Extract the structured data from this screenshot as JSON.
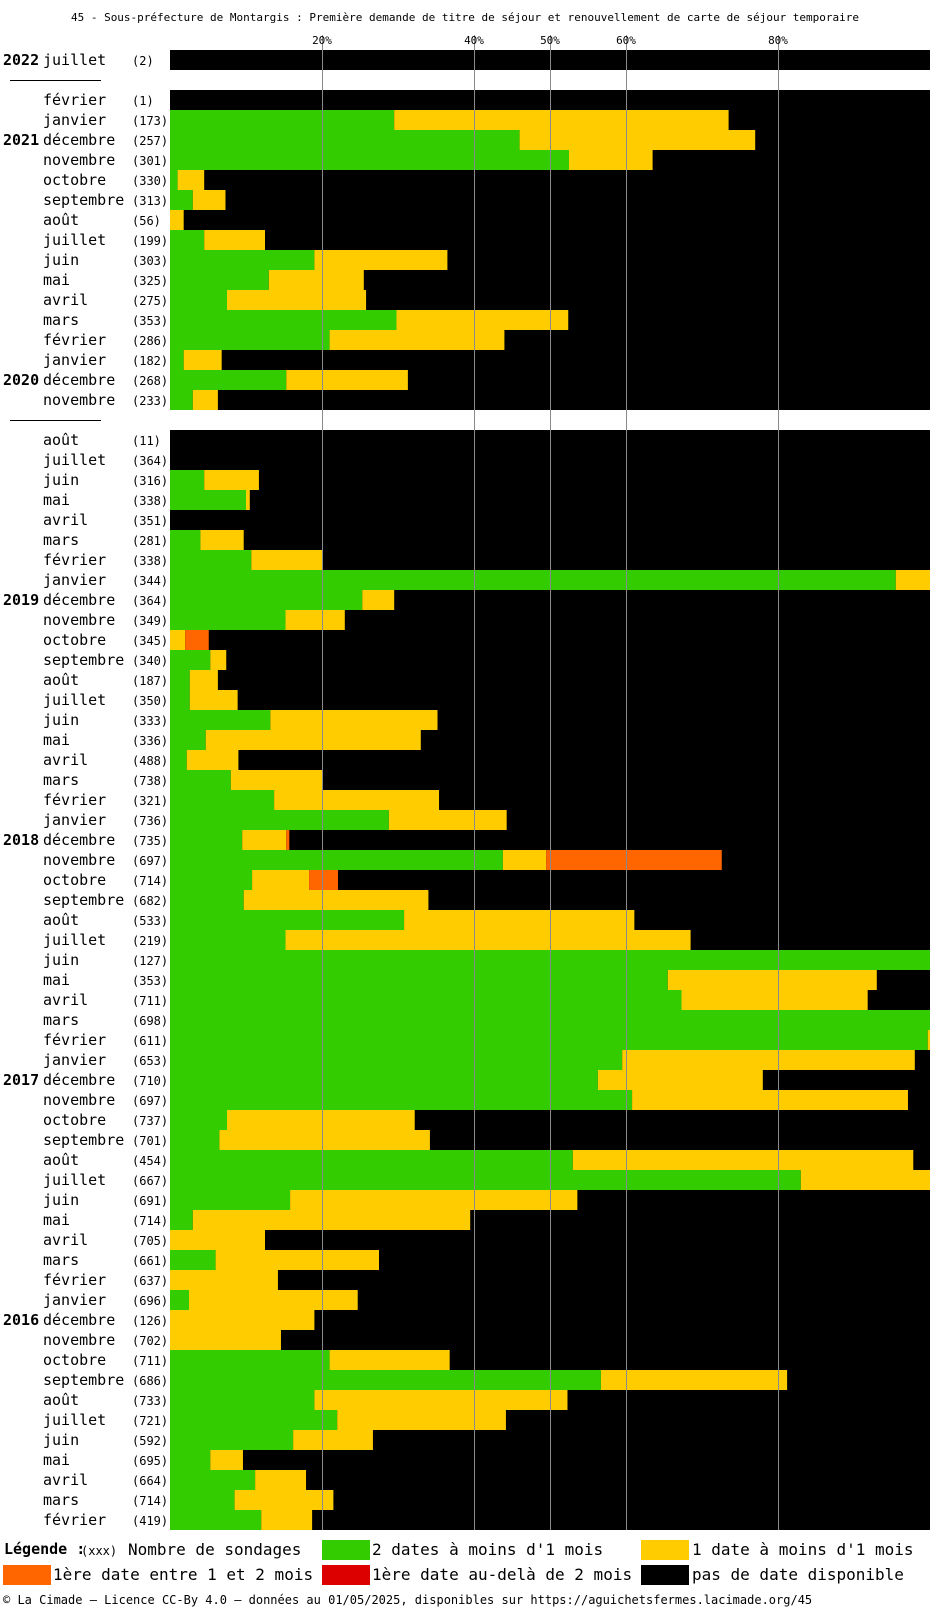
{
  "chart_data": {
    "type": "bar",
    "orientation": "horizontal",
    "stacked": true,
    "title": "45 - Sous-préfecture de Montargis : Première demande de titre de séjour et renouvellement de carte de séjour temporaire",
    "x_ticks": [
      "20%",
      "40%",
      "50%",
      "60%",
      "80%"
    ],
    "xlim": [
      0,
      100
    ],
    "grid": true,
    "colors": {
      "green": "#33cc00",
      "yellow": "#ffcc00",
      "orange": "#ff6600",
      "red": "#dd0000",
      "black": "#000000"
    },
    "series_order": [
      "green",
      "yellow",
      "orange",
      "red",
      "black"
    ],
    "rows": [
      {
        "year": "2022",
        "month": "juillet",
        "count": "(2)",
        "green": 0,
        "yellow": 0,
        "orange": 0,
        "red": 0
      },
      {
        "sep": true
      },
      {
        "year": "",
        "month": "février",
        "count": "(1)",
        "green": 0,
        "yellow": 0,
        "orange": 0,
        "red": 0
      },
      {
        "year": "",
        "month": "janvier",
        "count": "(173)",
        "green": 29.5,
        "yellow": 44,
        "orange": 0,
        "red": 0
      },
      {
        "year": "2021",
        "month": "décembre",
        "count": "(257)",
        "green": 46,
        "yellow": 31,
        "orange": 0,
        "red": 0
      },
      {
        "year": "",
        "month": "novembre",
        "count": "(301)",
        "green": 52.5,
        "yellow": 11,
        "orange": 0,
        "red": 0
      },
      {
        "year": "",
        "month": "octobre",
        "count": "(330)",
        "green": 1,
        "yellow": 3.5,
        "orange": 0,
        "red": 0
      },
      {
        "year": "",
        "month": "septembre",
        "count": "(313)",
        "green": 3,
        "yellow": 4.3,
        "orange": 0,
        "red": 0
      },
      {
        "year": "",
        "month": "août",
        "count": "(56)",
        "green": 0,
        "yellow": 1.8,
        "orange": 0,
        "red": 0
      },
      {
        "year": "",
        "month": "juillet",
        "count": "(199)",
        "green": 4.5,
        "yellow": 8,
        "orange": 0,
        "red": 0
      },
      {
        "year": "",
        "month": "juin",
        "count": "(303)",
        "green": 19,
        "yellow": 17.5,
        "orange": 0,
        "red": 0
      },
      {
        "year": "",
        "month": "mai",
        "count": "(325)",
        "green": 13,
        "yellow": 12.5,
        "orange": 0,
        "red": 0
      },
      {
        "year": "",
        "month": "avril",
        "count": "(275)",
        "green": 7.5,
        "yellow": 18.3,
        "orange": 0,
        "red": 0
      },
      {
        "year": "",
        "month": "mars",
        "count": "(353)",
        "green": 29.8,
        "yellow": 22.6,
        "orange": 0,
        "red": 0
      },
      {
        "year": "",
        "month": "février",
        "count": "(286)",
        "green": 21,
        "yellow": 23,
        "orange": 0,
        "red": 0
      },
      {
        "year": "",
        "month": "janvier",
        "count": "(182)",
        "green": 1.8,
        "yellow": 5,
        "orange": 0,
        "red": 0
      },
      {
        "year": "2020",
        "month": "décembre",
        "count": "(268)",
        "green": 15.3,
        "yellow": 16,
        "orange": 0,
        "red": 0
      },
      {
        "year": "",
        "month": "novembre",
        "count": "(233)",
        "green": 3,
        "yellow": 3.3,
        "orange": 0,
        "red": 0
      },
      {
        "sep": true
      },
      {
        "year": "",
        "month": "août",
        "count": "(11)",
        "green": 0,
        "yellow": 0,
        "orange": 0,
        "red": 0
      },
      {
        "year": "",
        "month": "juillet",
        "count": "(364)",
        "green": 0,
        "yellow": 0,
        "orange": 0,
        "red": 0
      },
      {
        "year": "",
        "month": "juin",
        "count": "(316)",
        "green": 4.5,
        "yellow": 7.2,
        "orange": 0,
        "red": 0
      },
      {
        "year": "",
        "month": "mai",
        "count": "(338)",
        "green": 10,
        "yellow": 0.5,
        "orange": 0,
        "red": 0
      },
      {
        "year": "",
        "month": "avril",
        "count": "(351)",
        "green": 0,
        "yellow": 0,
        "orange": 0,
        "red": 0
      },
      {
        "year": "",
        "month": "mars",
        "count": "(281)",
        "green": 4,
        "yellow": 5.7,
        "orange": 0,
        "red": 0
      },
      {
        "year": "",
        "month": "février",
        "count": "(338)",
        "green": 10.7,
        "yellow": 9.3,
        "orange": 0,
        "red": 0
      },
      {
        "year": "",
        "month": "janvier",
        "count": "(344)",
        "green": 95.5,
        "yellow": 4.5,
        "orange": 0,
        "red": 0
      },
      {
        "year": "2019",
        "month": "décembre",
        "count": "(364)",
        "green": 25.3,
        "yellow": 4.2,
        "orange": 0,
        "red": 0
      },
      {
        "year": "",
        "month": "novembre",
        "count": "(349)",
        "green": 15.2,
        "yellow": 7.8,
        "orange": 0,
        "red": 0
      },
      {
        "year": "",
        "month": "octobre",
        "count": "(345)",
        "green": 0,
        "yellow": 2,
        "orange": 3.1,
        "red": 0
      },
      {
        "year": "",
        "month": "septembre",
        "count": "(340)",
        "green": 5.3,
        "yellow": 2.1,
        "orange": 0,
        "red": 0
      },
      {
        "year": "",
        "month": "août",
        "count": "(187)",
        "green": 2.6,
        "yellow": 3.7,
        "orange": 0,
        "red": 0
      },
      {
        "year": "",
        "month": "juillet",
        "count": "(350)",
        "green": 2.6,
        "yellow": 6.3,
        "orange": 0,
        "red": 0
      },
      {
        "year": "",
        "month": "juin",
        "count": "(333)",
        "green": 13.2,
        "yellow": 22,
        "orange": 0,
        "red": 0
      },
      {
        "year": "",
        "month": "mai",
        "count": "(336)",
        "green": 4.7,
        "yellow": 28.3,
        "orange": 0,
        "red": 0
      },
      {
        "year": "",
        "month": "avril",
        "count": "(488)",
        "green": 2.2,
        "yellow": 6.8,
        "orange": 0,
        "red": 0
      },
      {
        "year": "",
        "month": "mars",
        "count": "(738)",
        "green": 8,
        "yellow": 12,
        "orange": 0,
        "red": 0
      },
      {
        "year": "",
        "month": "février",
        "count": "(321)",
        "green": 13.7,
        "yellow": 21.7,
        "orange": 0,
        "red": 0
      },
      {
        "year": "",
        "month": "janvier",
        "count": "(736)",
        "green": 28.8,
        "yellow": 15.5,
        "orange": 0,
        "red": 0
      },
      {
        "year": "2018",
        "month": "décembre",
        "count": "(735)",
        "green": 9.5,
        "yellow": 5.8,
        "orange": 0.4,
        "red": 0
      },
      {
        "year": "",
        "month": "novembre",
        "count": "(697)",
        "green": 43.8,
        "yellow": 5.7,
        "orange": 23.1,
        "red": 0
      },
      {
        "year": "",
        "month": "octobre",
        "count": "(714)",
        "green": 10.8,
        "yellow": 7.5,
        "orange": 3.8,
        "red": 0
      },
      {
        "year": "",
        "month": "septembre",
        "count": "(682)",
        "green": 9.7,
        "yellow": 24.3,
        "orange": 0,
        "red": 0
      },
      {
        "year": "",
        "month": "août",
        "count": "(533)",
        "green": 30.8,
        "yellow": 30.3,
        "orange": 0,
        "red": 0
      },
      {
        "year": "",
        "month": "juillet",
        "count": "(219)",
        "green": 15.2,
        "yellow": 53.3,
        "orange": 0,
        "red": 0
      },
      {
        "year": "",
        "month": "juin",
        "count": "(127)",
        "green": 100,
        "yellow": 0,
        "orange": 0,
        "red": 0
      },
      {
        "year": "",
        "month": "mai",
        "count": "(353)",
        "green": 65.5,
        "yellow": 27.5,
        "orange": 0,
        "red": 0
      },
      {
        "year": "",
        "month": "avril",
        "count": "(711)",
        "green": 67.3,
        "yellow": 24.5,
        "orange": 0,
        "red": 0
      },
      {
        "year": "",
        "month": "mars",
        "count": "(698)",
        "green": 100,
        "yellow": 0,
        "orange": 0,
        "red": 0
      },
      {
        "year": "",
        "month": "février",
        "count": "(611)",
        "green": 99.7,
        "yellow": 0.3,
        "orange": 0,
        "red": 0
      },
      {
        "year": "",
        "month": "janvier",
        "count": "(653)",
        "green": 59.5,
        "yellow": 38.5,
        "orange": 0,
        "red": 0
      },
      {
        "year": "2017",
        "month": "décembre",
        "count": "(710)",
        "green": 56.3,
        "yellow": 21.7,
        "orange": 0,
        "red": 0
      },
      {
        "year": "",
        "month": "novembre",
        "count": "(697)",
        "green": 60.8,
        "yellow": 36.3,
        "orange": 0,
        "red": 0
      },
      {
        "year": "",
        "month": "octobre",
        "count": "(737)",
        "green": 7.5,
        "yellow": 24.7,
        "orange": 0,
        "red": 0
      },
      {
        "year": "",
        "month": "septembre",
        "count": "(701)",
        "green": 6.5,
        "yellow": 27.7,
        "orange": 0,
        "red": 0
      },
      {
        "year": "",
        "month": "août",
        "count": "(454)",
        "green": 53,
        "yellow": 44.8,
        "orange": 0,
        "red": 0
      },
      {
        "year": "",
        "month": "juillet",
        "count": "(667)",
        "green": 83,
        "yellow": 17,
        "orange": 0,
        "red": 0
      },
      {
        "year": "",
        "month": "juin",
        "count": "(691)",
        "green": 15.8,
        "yellow": 37.8,
        "orange": 0,
        "red": 0
      },
      {
        "year": "",
        "month": "mai",
        "count": "(714)",
        "green": 3,
        "yellow": 36.5,
        "orange": 0,
        "red": 0
      },
      {
        "year": "",
        "month": "avril",
        "count": "(705)",
        "green": 0,
        "yellow": 12.5,
        "orange": 0,
        "red": 0
      },
      {
        "year": "",
        "month": "mars",
        "count": "(661)",
        "green": 6,
        "yellow": 21.5,
        "orange": 0,
        "red": 0
      },
      {
        "year": "",
        "month": "février",
        "count": "(637)",
        "green": 0,
        "yellow": 14.2,
        "orange": 0,
        "red": 0
      },
      {
        "year": "",
        "month": "janvier",
        "count": "(696)",
        "green": 2.5,
        "yellow": 22.2,
        "orange": 0,
        "red": 0
      },
      {
        "year": "2016",
        "month": "décembre",
        "count": "(126)",
        "green": 0,
        "yellow": 19,
        "orange": 0,
        "red": 0
      },
      {
        "year": "",
        "month": "novembre",
        "count": "(702)",
        "green": 0,
        "yellow": 14.6,
        "orange": 0,
        "red": 0
      },
      {
        "year": "",
        "month": "octobre",
        "count": "(711)",
        "green": 21,
        "yellow": 15.8,
        "orange": 0,
        "red": 0
      },
      {
        "year": "",
        "month": "septembre",
        "count": "(686)",
        "green": 56.7,
        "yellow": 24.5,
        "orange": 0,
        "red": 0
      },
      {
        "year": "",
        "month": "août",
        "count": "(733)",
        "green": 19,
        "yellow": 33.3,
        "orange": 0,
        "red": 0
      },
      {
        "year": "",
        "month": "juillet",
        "count": "(721)",
        "green": 22,
        "yellow": 22.2,
        "orange": 0,
        "red": 0
      },
      {
        "year": "",
        "month": "juin",
        "count": "(592)",
        "green": 16.2,
        "yellow": 10.5,
        "orange": 0,
        "red": 0
      },
      {
        "year": "",
        "month": "mai",
        "count": "(695)",
        "green": 5.3,
        "yellow": 4.3,
        "orange": 0,
        "red": 0
      },
      {
        "year": "",
        "month": "avril",
        "count": "(664)",
        "green": 11.2,
        "yellow": 6.7,
        "orange": 0,
        "red": 0
      },
      {
        "year": "",
        "month": "mars",
        "count": "(714)",
        "green": 8.5,
        "yellow": 13,
        "orange": 0,
        "red": 0
      },
      {
        "year": "",
        "month": "février",
        "count": "(419)",
        "green": 12,
        "yellow": 6.7,
        "orange": 0,
        "red": 0
      }
    ]
  },
  "legend": {
    "title": "Légende :",
    "xxx": "(xxx)",
    "items": [
      {
        "key": "count",
        "label": "Nombre de sondages"
      },
      {
        "key": "green",
        "label": "2 dates à moins d'1 mois",
        "color": "#33cc00"
      },
      {
        "key": "yellow",
        "label": "1 date à moins d'1 mois",
        "color": "#ffcc00"
      },
      {
        "key": "orange",
        "label": "1ère date entre 1 et 2 mois",
        "color": "#ff6600"
      },
      {
        "key": "red",
        "label": "1ère date au-delà de 2 mois",
        "color": "#dd0000"
      },
      {
        "key": "black",
        "label": "pas de date disponible",
        "color": "#000000"
      }
    ]
  },
  "footer": "© La Cimade — Licence CC-By 4.0 — données au 01/05/2025, disponibles sur https://aguichetsfermes.lacimade.org/45"
}
